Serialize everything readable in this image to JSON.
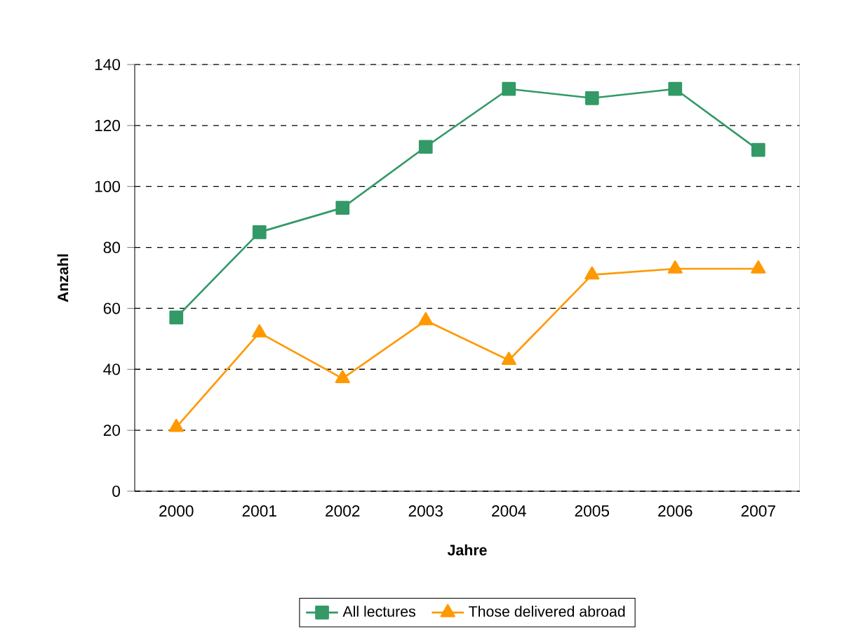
{
  "chart_data": {
    "type": "line",
    "xlabel": "Jahre",
    "ylabel": "Anzahl",
    "categories": [
      "2000",
      "2001",
      "2002",
      "2003",
      "2004",
      "2005",
      "2006",
      "2007"
    ],
    "series": [
      {
        "name": "All lectures",
        "color": "#339966",
        "marker": "square",
        "values": [
          57,
          85,
          93,
          113,
          132,
          129,
          132,
          112
        ]
      },
      {
        "name": "Those delivered abroad",
        "color": "#ff9900",
        "marker": "triangle",
        "values": [
          21,
          52,
          37,
          56,
          43,
          71,
          73,
          73
        ]
      }
    ],
    "ylim": [
      0,
      140
    ],
    "yticks": [
      0,
      20,
      40,
      60,
      80,
      100,
      120,
      140
    ],
    "grid": "y",
    "legend": "bottom",
    "line_style": "solid"
  }
}
